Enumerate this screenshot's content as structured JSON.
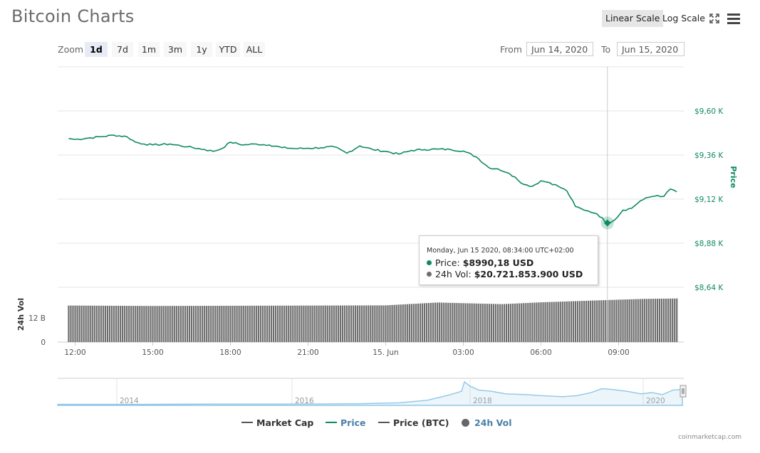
{
  "header": {
    "title": "Bitcoin Charts",
    "linear_scale_label": "Linear Scale",
    "log_scale_label": "Log Scale",
    "icons": [
      "fullscreen-icon",
      "menu-icon"
    ]
  },
  "toolbar": {
    "zoom_label": "Zoom",
    "zoom_options": [
      "1d",
      "7d",
      "1m",
      "3m",
      "1y",
      "YTD",
      "ALL"
    ],
    "zoom_selected": "1d",
    "from_label": "From",
    "from_value": "Jun 14, 2020",
    "to_label": "To",
    "to_value": "Jun 15, 2020"
  },
  "tooltip": {
    "header": "Monday, Jun 15 2020, 08:34:00 UTC+02:00",
    "price_label": "Price:",
    "price_value": "$8990,18 USD",
    "vol_label": "24h Vol:",
    "vol_value": "$20.721.853.900 USD"
  },
  "legend": {
    "market_cap": "Market Cap",
    "price": "Price",
    "price_btc": "Price (BTC)",
    "vol": "24h Vol"
  },
  "footer": {
    "credit": "coinmarketcap.com"
  },
  "colors": {
    "price": "#0f8a5f",
    "volume": "#6e6e6e",
    "navigator": "#8fc7e6",
    "market_cap": "#555555",
    "price_btc": "#555555",
    "legend_active": "#4a7fa8"
  },
  "chart_data": {
    "type": "line",
    "title": "Bitcoin Charts",
    "series": [
      {
        "name": "Price",
        "unit": "USD",
        "x": [
          "Jun 14 11:45",
          "Jun 14 12:00",
          "Jun 14 12:30",
          "Jun 14 13:00",
          "Jun 14 13:30",
          "Jun 14 14:00",
          "Jun 14 14:20",
          "Jun 14 14:40",
          "Jun 14 15:00",
          "Jun 14 15:40",
          "Jun 14 16:20",
          "Jun 14 17:00",
          "Jun 14 17:20",
          "Jun 14 17:40",
          "Jun 14 18:00",
          "Jun 14 18:30",
          "Jun 14 19:00",
          "Jun 14 19:30",
          "Jun 14 20:00",
          "Jun 14 20:30",
          "Jun 14 21:00",
          "Jun 14 21:30",
          "Jun 14 22:00",
          "Jun 14 22:30",
          "Jun 14 23:00",
          "Jun 14 23:30",
          "Jun 15 00:00",
          "Jun 15 00:30",
          "Jun 15 01:00",
          "Jun 15 01:30",
          "Jun 15 02:00",
          "Jun 15 02:30",
          "Jun 15 03:00",
          "Jun 15 03:30",
          "Jun 15 04:00",
          "Jun 15 04:20",
          "Jun 15 04:40",
          "Jun 15 05:00",
          "Jun 15 05:20",
          "Jun 15 05:40",
          "Jun 15 06:00",
          "Jun 15 06:20",
          "Jun 15 06:40",
          "Jun 15 07:00",
          "Jun 15 07:20",
          "Jun 15 07:40",
          "Jun 15 07:50",
          "Jun 15 08:10",
          "Jun 15 08:34",
          "Jun 15 08:50",
          "Jun 15 09:10",
          "Jun 15 09:30",
          "Jun 15 09:50",
          "Jun 15 10:10",
          "Jun 15 10:30",
          "Jun 15 10:45",
          "Jun 15 11:00",
          "Jun 15 11:15"
        ],
        "y": [
          9450,
          9445,
          9452,
          9460,
          9468,
          9460,
          9430,
          9420,
          9415,
          9420,
          9405,
          9390,
          9380,
          9395,
          9430,
          9415,
          9420,
          9415,
          9400,
          9395,
          9397,
          9400,
          9405,
          9370,
          9410,
          9390,
          9380,
          9365,
          9385,
          9390,
          9392,
          9390,
          9382,
          9350,
          9290,
          9285,
          9265,
          9240,
          9200,
          9190,
          9220,
          9210,
          9190,
          9165,
          9080,
          9060,
          9055,
          9040,
          8990,
          9005,
          9060,
          9070,
          9110,
          9130,
          9140,
          9135,
          9175,
          9160
        ]
      },
      {
        "name": "24h Vol",
        "unit": "USD",
        "x": [
          "Jun 14 12:00",
          "Jun 14 15:00",
          "Jun 14 18:00",
          "Jun 14 21:00",
          "Jun 15 00:00",
          "Jun 15 02:00",
          "Jun 15 04:30",
          "Jun 15 06:00",
          "Jun 15 08:34",
          "Jun 15 10:00",
          "Jun 15 11:15"
        ],
        "y": [
          18000000000.0,
          17800000000.0,
          17900000000.0,
          18000000000.0,
          18100000000.0,
          19500000000.0,
          18700000000.0,
          19600000000.0,
          20720000000.0,
          21300000000.0,
          21500000000.0
        ]
      }
    ],
    "price_axis": {
      "label": "Price",
      "ticks": [
        "$8,64 K",
        "$8,88 K",
        "$9,12 K",
        "$9,36 K",
        "$9,60 K"
      ],
      "ylim": [
        8640,
        9840
      ]
    },
    "volume_axis": {
      "label": "24h Vol",
      "ticks": [
        "0",
        "12 B"
      ]
    },
    "x_ticks": [
      "12:00",
      "15:00",
      "18:00",
      "21:00",
      "15. Jun",
      "03:00",
      "06:00",
      "09:00"
    ],
    "navigator": {
      "year_labels": [
        "2014",
        "2016",
        "2018",
        "2020"
      ]
    },
    "highlight": {
      "x": "Jun 15 08:34",
      "price": 8990.18,
      "vol": 20721853900
    },
    "grid": true,
    "legend_position": "bottom"
  }
}
